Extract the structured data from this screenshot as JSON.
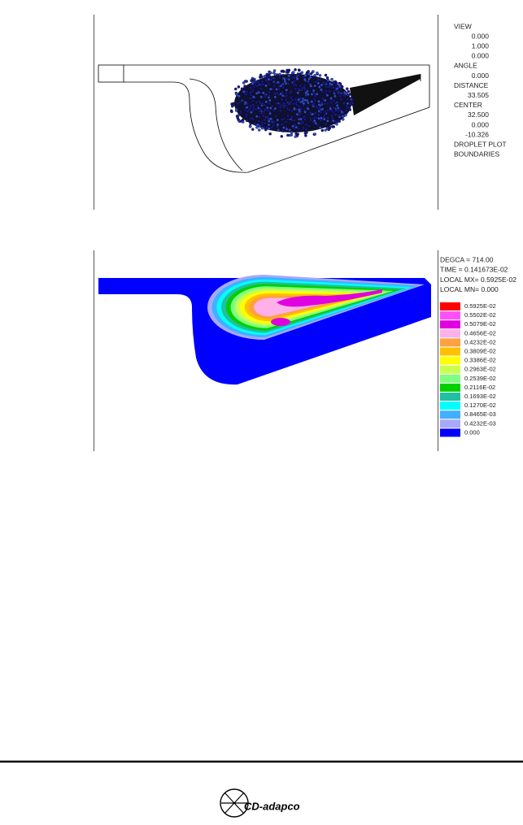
{
  "figure_1": {
    "lines": [
      {
        "text": "VIEW",
        "indent": false
      },
      {
        "text": "0.000",
        "indent": true
      },
      {
        "text": "1.000",
        "indent": true
      },
      {
        "text": "0.000",
        "indent": true
      },
      {
        "text": "ANGLE",
        "indent": false
      },
      {
        "text": "0.000",
        "indent": true
      },
      {
        "text": "DISTANCE",
        "indent": false
      },
      {
        "text": "33.505",
        "indent": true
      },
      {
        "text": "CENTER",
        "indent": false
      },
      {
        "text": "32.500",
        "indent": true
      },
      {
        "text": "0.000",
        "indent": true
      },
      {
        "text": "-10.326",
        "indent": true
      },
      {
        "text": "DROPLET PLOT",
        "indent": false
      },
      {
        "text": "BOUNDARIES",
        "indent": false
      }
    ]
  },
  "figure_2": {
    "header": [
      "DEGCA =   714.00",
      "TIME = 0.141673E-02",
      "LOCAL MX= 0.5925E-02",
      "LOCAL MN=  0.000"
    ],
    "legend": [
      {
        "label": "0.5925E-02",
        "color": "#ff0000"
      },
      {
        "label": "0.5502E-02",
        "color": "#ff50ff"
      },
      {
        "label": "0.5079E-02",
        "color": "#e000e0"
      },
      {
        "label": "0.4656E-02",
        "color": "#ffb0e8"
      },
      {
        "label": "0.4232E-02",
        "color": "#ffa040"
      },
      {
        "label": "0.3809E-02",
        "color": "#ffc000"
      },
      {
        "label": "0.3386E-02",
        "color": "#ffff00"
      },
      {
        "label": "0.2963E-02",
        "color": "#c8ff50"
      },
      {
        "label": "0.2539E-02",
        "color": "#80ff80"
      },
      {
        "label": "0.2116E-02",
        "color": "#00d000"
      },
      {
        "label": "0.1693E-02",
        "color": "#20c0a0"
      },
      {
        "label": "0.1270E-02",
        "color": "#00ffff"
      },
      {
        "label": "0.8465E-03",
        "color": "#40b0ff"
      },
      {
        "label": "0.4232E-03",
        "color": "#a8a8ff"
      },
      {
        "label": "0.000",
        "color": "#0000ff"
      }
    ]
  },
  "footer": {
    "logo": "CD-adapco"
  }
}
